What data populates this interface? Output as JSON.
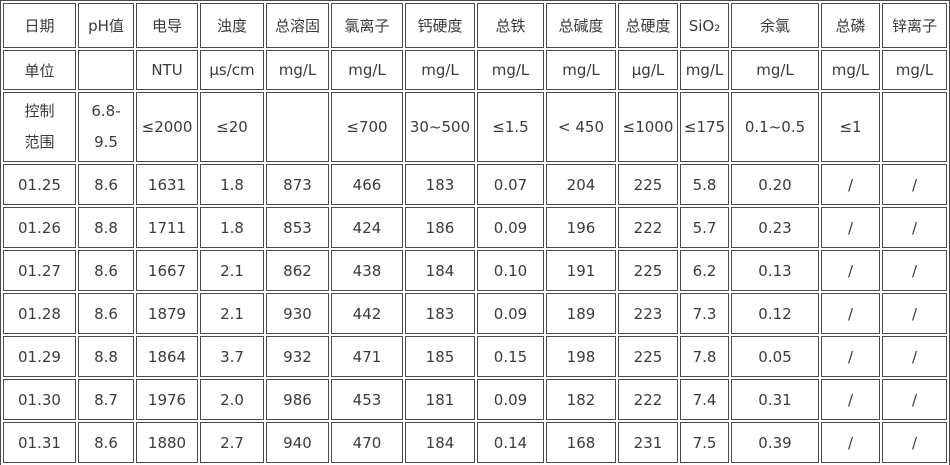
{
  "table": {
    "title_semantic": "water-quality-daily-report",
    "border_color": "#4a4a4a",
    "text_color": "#3b3b3b",
    "background_color": "#ffffff",
    "row_kinds": [
      "header",
      "unit",
      "control",
      "data",
      "data",
      "data",
      "data",
      "data",
      "data",
      "data"
    ],
    "column_headers": [
      "日期",
      "pH值",
      "电导",
      "浊度",
      "总溶固",
      "氯离子",
      "钙硬度",
      "总铁",
      "总碱度",
      "总硬度",
      "SiO₂",
      "余氯",
      "总磷",
      "锌离子"
    ],
    "rows": [
      [
        "日期",
        "pH值",
        "电导",
        "浊度",
        "总溶固",
        "氯离子",
        "钙硬度",
        "总铁",
        "总碱度",
        "总硬度",
        "SiO₂",
        "余氯",
        "总磷",
        "锌离子"
      ],
      [
        "单位",
        "",
        "NTU",
        "μs/cm",
        "mg/L",
        "mg/L",
        "mg/L",
        "mg/L",
        "mg/L",
        "μg/L",
        "mg/L",
        "mg/L",
        "mg/L",
        "mg/L"
      ],
      [
        "控制\n范围",
        "6.8-\n9.5",
        "≤2000",
        "≤20",
        "",
        "≤700",
        "30~500",
        "≤1.5",
        "< 450",
        "≤1000",
        "≤175",
        "0.1~0.5",
        "≤1",
        ""
      ],
      [
        "01.25",
        "8.6",
        "1631",
        "1.8",
        "873",
        "466",
        "183",
        "0.07",
        "204",
        "225",
        "5.8",
        "0.20",
        "/",
        "/"
      ],
      [
        "01.26",
        "8.8",
        "1711",
        "1.8",
        "853",
        "424",
        "186",
        "0.09",
        "196",
        "222",
        "5.7",
        "0.23",
        "/",
        "/"
      ],
      [
        "01.27",
        "8.6",
        "1667",
        "2.1",
        "862",
        "438",
        "184",
        "0.10",
        "191",
        "225",
        "6.2",
        "0.13",
        "/",
        "/"
      ],
      [
        "01.28",
        "8.6",
        "1879",
        "2.1",
        "930",
        "442",
        "183",
        "0.09",
        "189",
        "223",
        "7.3",
        "0.12",
        "/",
        "/"
      ],
      [
        "01.29",
        "8.8",
        "1864",
        "3.7",
        "932",
        "471",
        "185",
        "0.15",
        "198",
        "225",
        "7.8",
        "0.05",
        "/",
        "/"
      ],
      [
        "01.30",
        "8.7",
        "1976",
        "2.0",
        "986",
        "453",
        "181",
        "0.09",
        "182",
        "222",
        "7.4",
        "0.31",
        "/",
        "/"
      ],
      [
        "01.31",
        "8.6",
        "1880",
        "2.7",
        "940",
        "470",
        "184",
        "0.14",
        "168",
        "231",
        "7.5",
        "0.39",
        "/",
        "/"
      ]
    ]
  }
}
